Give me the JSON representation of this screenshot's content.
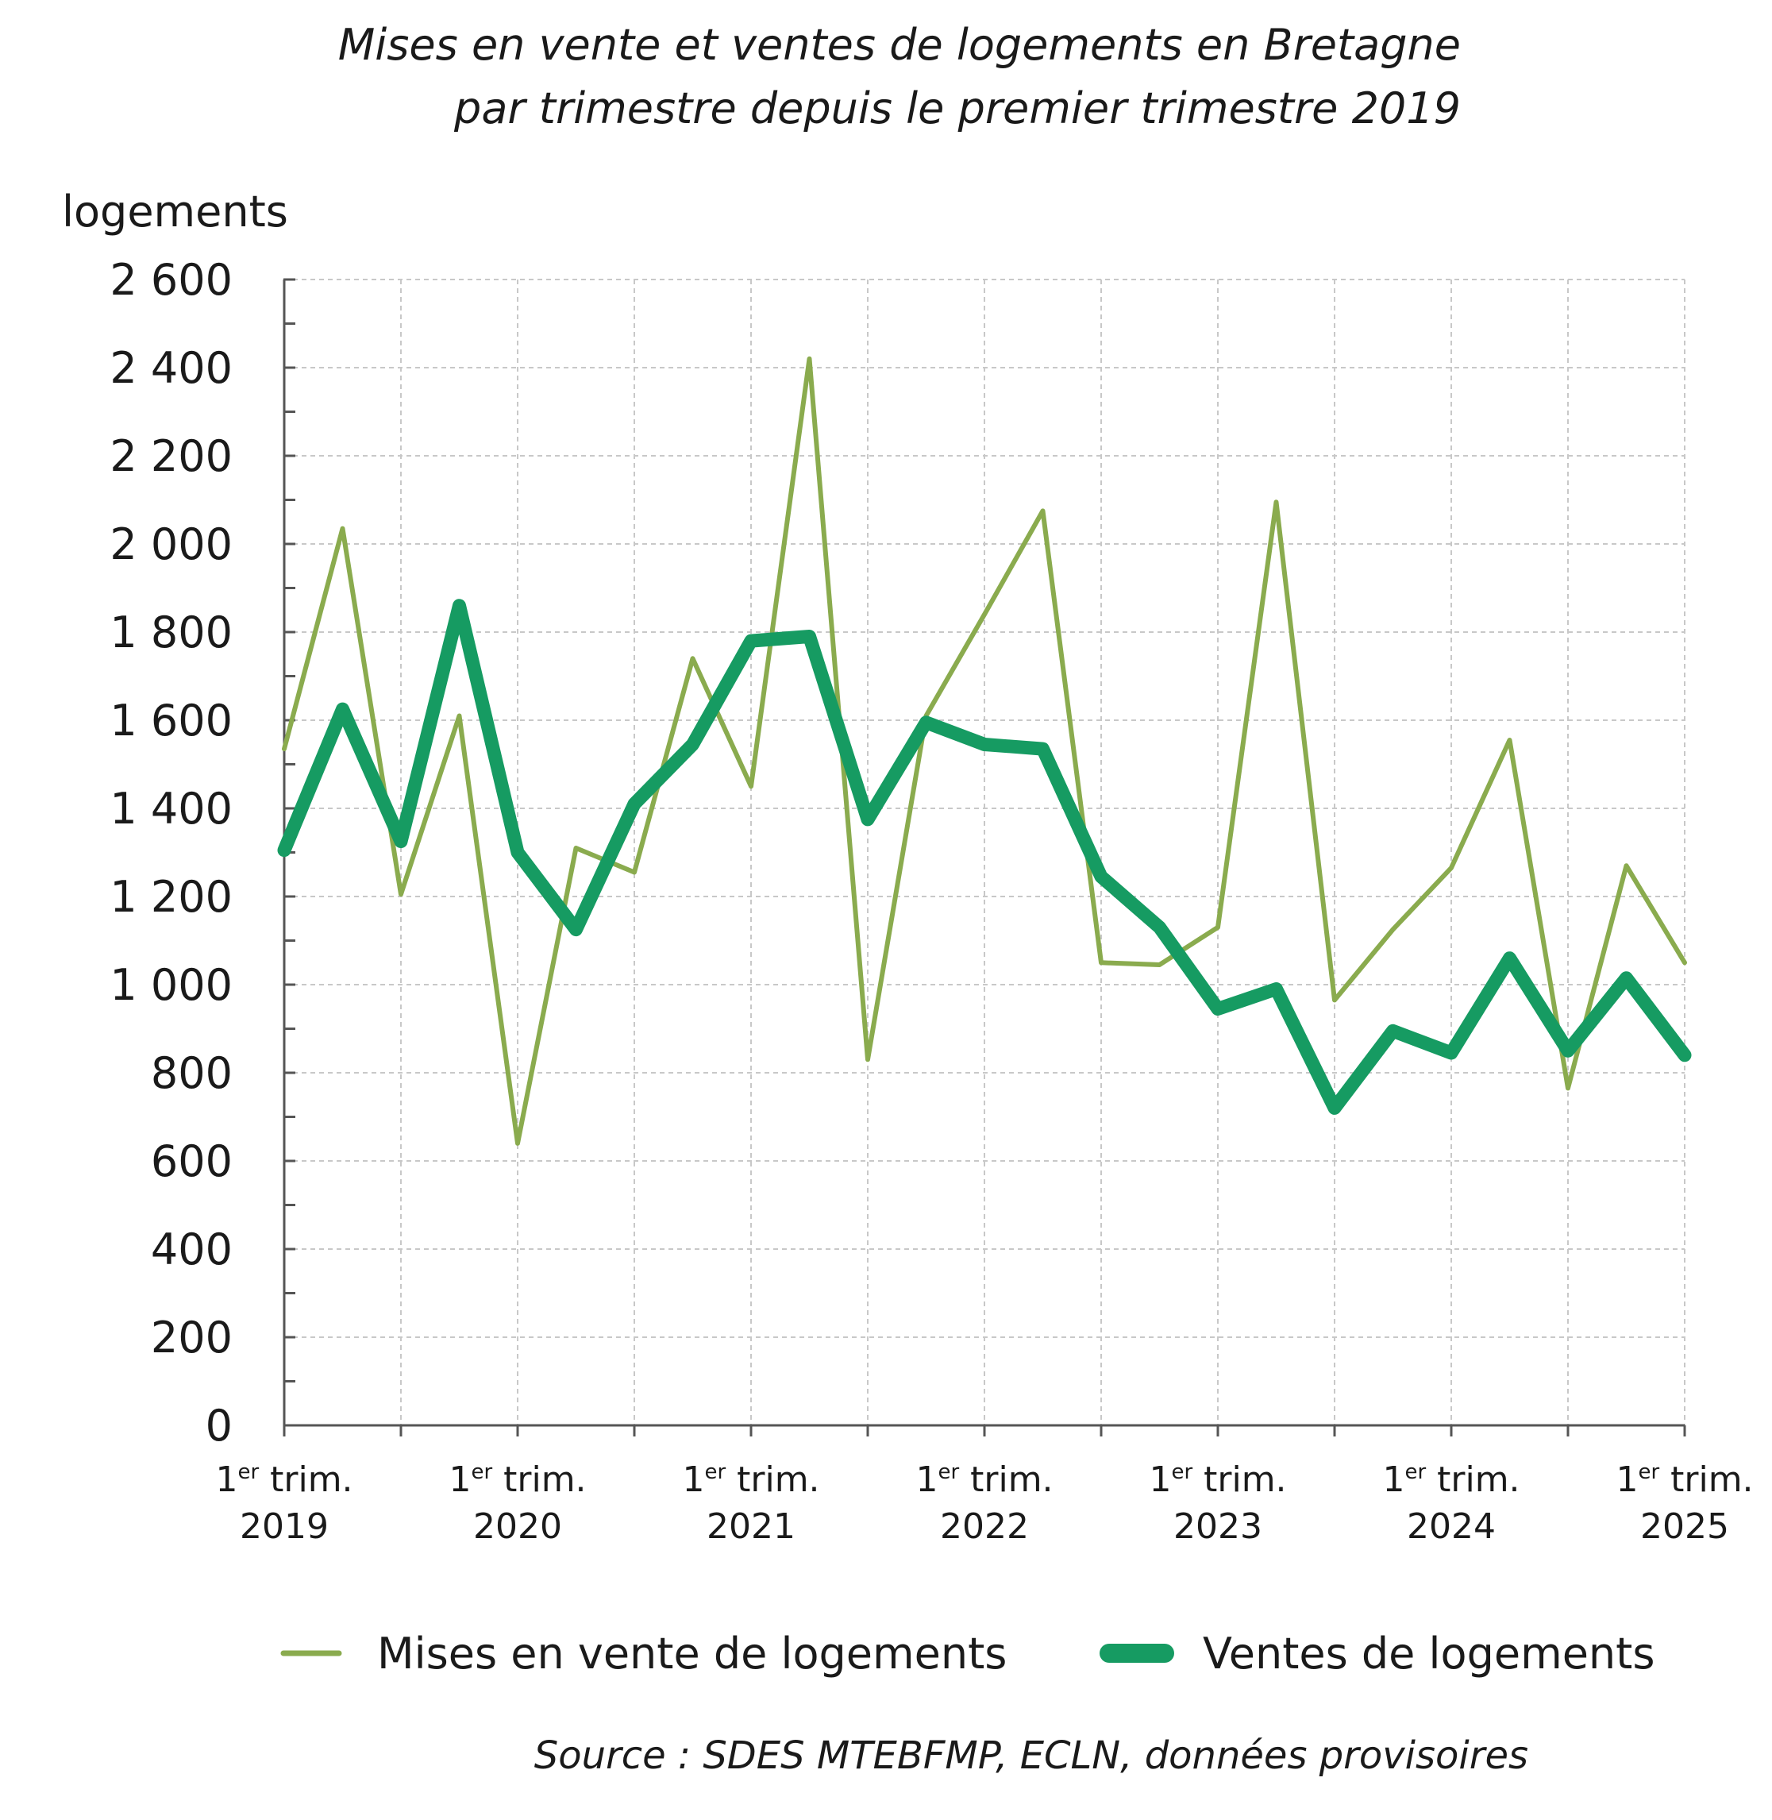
{
  "chart_data": {
    "type": "line",
    "title": [
      "Mises en vente et ventes de logements en Bretagne",
      "par trimestre depuis le premier trimestre 2019"
    ],
    "ylabel": "logements",
    "xlabel": "",
    "ylim": [
      0,
      2600
    ],
    "yticks": [
      "0",
      "200",
      "400",
      "600",
      "800",
      "1 000",
      "1 200",
      "1 400",
      "1 600",
      "1 800",
      "2 000",
      "2 200",
      "2 400",
      "2 600"
    ],
    "ytick_values": [
      0,
      200,
      400,
      600,
      800,
      1000,
      1200,
      1400,
      1600,
      1800,
      2000,
      2200,
      2400,
      2600
    ],
    "xtick_labels": [
      {
        "prefix": "1",
        "sup": "er",
        "suffix": " trim.",
        "year": "2019"
      },
      {
        "prefix": "1",
        "sup": "er",
        "suffix": " trim.",
        "year": "2020"
      },
      {
        "prefix": "1",
        "sup": "er",
        "suffix": " trim.",
        "year": "2021"
      },
      {
        "prefix": "1",
        "sup": "er",
        "suffix": " trim.",
        "year": "2022"
      },
      {
        "prefix": "1",
        "sup": "er",
        "suffix": " trim.",
        "year": "2023"
      },
      {
        "prefix": "1",
        "sup": "er",
        "suffix": " trim.",
        "year": "2024"
      },
      {
        "prefix": "1",
        "sup": "er",
        "suffix": " trim.",
        "year": "2025"
      }
    ],
    "x": [
      "2019T1",
      "2019T2",
      "2019T3",
      "2019T4",
      "2020T1",
      "2020T2",
      "2020T3",
      "2020T4",
      "2021T1",
      "2021T2",
      "2021T3",
      "2021T4",
      "2022T1",
      "2022T2",
      "2022T3",
      "2022T4",
      "2023T1",
      "2023T2",
      "2023T3",
      "2023T4",
      "2024T1",
      "2024T2",
      "2024T3",
      "2024T4",
      "2025T1"
    ],
    "series": [
      {
        "name": "Mises en vente de logements",
        "color": "#8aab4e",
        "values": [
          1535,
          2035,
          1205,
          1610,
          640,
          1310,
          1255,
          1740,
          1450,
          2420,
          830,
          1610,
          1840,
          2075,
          1050,
          1045,
          1130,
          2095,
          965,
          1125,
          1265,
          1555,
          765,
          1270,
          1050
        ]
      },
      {
        "name": "Ventes de logements",
        "color": "#169b62",
        "values": [
          1305,
          1625,
          1325,
          1860,
          1300,
          1125,
          1410,
          1545,
          1780,
          1790,
          1375,
          1595,
          1545,
          1535,
          1245,
          1130,
          945,
          990,
          720,
          895,
          845,
          1060,
          850,
          1015,
          840
        ]
      }
    ],
    "legend_position": "bottom",
    "grid": true
  },
  "source": "Source : SDES MTEBFMP, ECLN, données provisoires"
}
